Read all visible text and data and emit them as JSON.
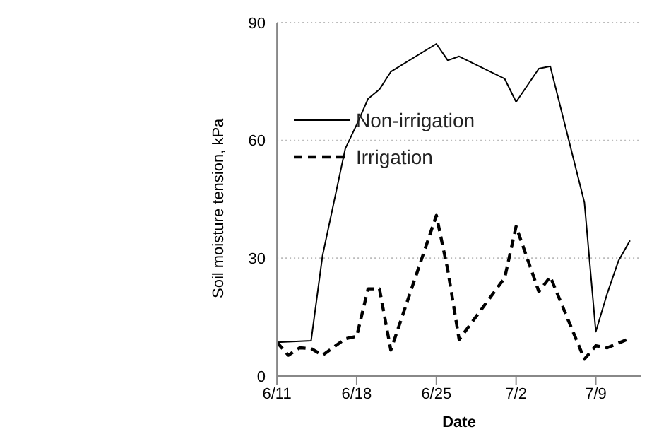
{
  "chart_data": {
    "type": "line",
    "xlabel": "Date",
    "ylabel": "Soil moisture tension, kPa",
    "xlim": [
      "--06-11",
      "--07-13"
    ],
    "xticks": [
      {
        "value": "--06-11",
        "label": "6/11"
      },
      {
        "value": "--06-18",
        "label": "6/18"
      },
      {
        "value": "--06-25",
        "label": "6/25"
      },
      {
        "value": "--07-02",
        "label": "7/2"
      },
      {
        "value": "--07-09",
        "label": "7/9"
      }
    ],
    "ylim": [
      0,
      90
    ],
    "yticks": [
      0,
      30,
      60,
      90
    ],
    "grid": "y",
    "legend": "top",
    "marker": "none",
    "series": [
      {
        "name": "Non-irrigation",
        "color": "#000000",
        "line_style": "solid",
        "x": [
          "--06-11",
          "--06-14",
          "--06-15",
          "--06-17",
          "--06-18",
          "--06-19",
          "--06-20",
          "--06-21",
          "--06-25",
          "--06-26",
          "--06-27",
          "--07-01",
          "--07-02",
          "--07-04",
          "--07-05",
          "--07-08",
          "--07-09",
          "--07-10",
          "--07-11",
          "--07-12"
        ],
        "values": [
          8.6,
          9.0,
          30.6,
          57.9,
          64,
          70.6,
          73,
          77.5,
          84.6,
          80.4,
          81.4,
          75.7,
          69.8,
          78.3,
          78.9,
          44.2,
          11.3,
          21,
          29.4,
          34.5
        ]
      },
      {
        "name": "Irrigation",
        "color": "#000000",
        "line_style": "dashed",
        "x": [
          "--06-11",
          "--06-12",
          "--06-13",
          "--06-14",
          "--06-15",
          "--06-17",
          "--06-18",
          "--06-19",
          "--06-20",
          "--06-21",
          "--06-25",
          "--06-26",
          "--06-27",
          "--07-01",
          "--07-02",
          "--07-04",
          "--07-05",
          "--07-08",
          "--07-09",
          "--07-10",
          "--07-12"
        ],
        "values": [
          8.6,
          5.3,
          7.2,
          7,
          5.3,
          9.5,
          10.1,
          22.2,
          22.2,
          6.6,
          40.9,
          27,
          9.3,
          25.0,
          38.1,
          21.5,
          25.3,
          4.3,
          7.7,
          7.2,
          9.6
        ]
      }
    ]
  }
}
